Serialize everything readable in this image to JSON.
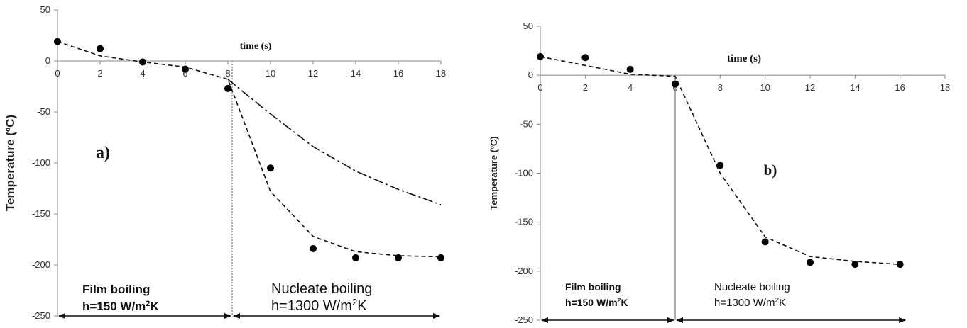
{
  "chart_data": [
    {
      "type": "line",
      "panel_label": "a)",
      "ylabel": "Temperature (ºC)",
      "xlabel": "time (s)",
      "xlim": [
        0,
        18
      ],
      "ylim": [
        -250,
        50
      ],
      "x_ticks": [
        0,
        2,
        4,
        6,
        8,
        10,
        12,
        14,
        16,
        18
      ],
      "y_ticks": [
        50,
        0,
        -50,
        -100,
        -150,
        -200,
        -250
      ],
      "grid": false,
      "series": [
        {
          "style": "markers",
          "x": [
            0,
            2,
            4,
            6,
            8,
            10,
            12,
            14,
            16,
            18
          ],
          "y": [
            19,
            12,
            -1,
            -8,
            -27,
            -105,
            -184,
            -193,
            -193,
            -193
          ]
        },
        {
          "style": "dashed",
          "x": [
            0,
            2,
            4,
            6,
            8,
            10,
            12,
            14,
            16,
            18
          ],
          "y": [
            19,
            5,
            -1,
            -6,
            -18,
            -128,
            -172,
            -187,
            -191,
            -192
          ]
        },
        {
          "style": "dash-dot",
          "x": [
            8,
            10,
            12,
            14,
            16,
            18
          ],
          "y": [
            -18,
            -52,
            -84,
            -108,
            -126,
            -141
          ]
        }
      ],
      "divider_x": 8.2,
      "regions": [
        {
          "name": "Film boiling",
          "h_text": "h=150 W/m",
          "h_sup": "2",
          "h_unit": "K",
          "x_from": 0,
          "x_to": 8.2
        },
        {
          "name": "Nucleate boiling",
          "h_text": "h=1300 W/m",
          "h_sup": "2",
          "h_unit": "K",
          "x_from": 8.2,
          "x_to": 18
        }
      ]
    },
    {
      "type": "line",
      "panel_label": "b)",
      "ylabel": "Temperature (ºC)",
      "xlabel": "time (s)",
      "xlim": [
        0,
        18
      ],
      "ylim": [
        -250,
        50
      ],
      "x_ticks": [
        0,
        2,
        4,
        6,
        8,
        10,
        12,
        14,
        16,
        18
      ],
      "y_ticks": [
        50,
        0,
        -50,
        -100,
        -150,
        -200,
        -250
      ],
      "grid": false,
      "series": [
        {
          "style": "markers",
          "x": [
            0,
            2,
            4,
            6,
            8,
            10,
            12,
            14,
            16
          ],
          "y": [
            19,
            18,
            6,
            -9,
            -92,
            -170,
            -191,
            -193,
            -193
          ]
        },
        {
          "style": "dashed",
          "x": [
            0,
            2,
            4,
            6,
            8,
            10,
            12,
            14,
            16
          ],
          "y": [
            19,
            10,
            1,
            -1,
            -100,
            -165,
            -185,
            -190,
            -193
          ]
        }
      ],
      "divider_x": 6,
      "regions": [
        {
          "name": "Film boiling",
          "h_text": "h=150 W/m",
          "h_sup": "2",
          "h_unit": "K",
          "x_from": 0,
          "x_to": 6
        },
        {
          "name": "Nucleate boiling",
          "h_text": "h=1300 W/m",
          "h_sup": "2",
          "h_unit": "K",
          "x_from": 6,
          "x_to": 16.3
        }
      ]
    }
  ]
}
